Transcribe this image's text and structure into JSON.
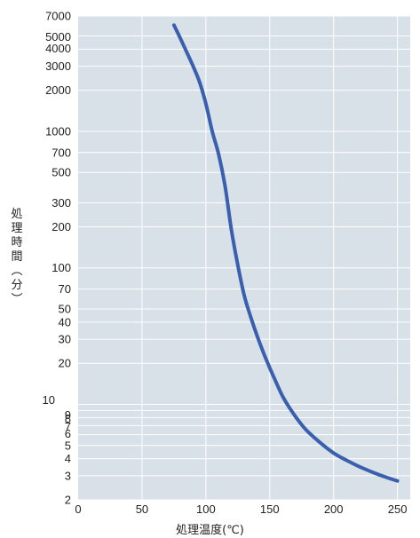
{
  "chart_data": {
    "type": "line",
    "xlabel": "処理温度(℃)",
    "ylabel": "処理時間(分)",
    "xlim": [
      0,
      260
    ],
    "ylim": [
      2,
      7000
    ],
    "yscale": "log",
    "grid": true,
    "x_ticks": [
      0,
      50,
      100,
      150,
      200,
      250
    ],
    "y_ticks": [
      2,
      3,
      4,
      5,
      6,
      7,
      8,
      9,
      10,
      20,
      30,
      40,
      50,
      70,
      100,
      200,
      300,
      500,
      700,
      1000,
      2000,
      3000,
      4000,
      5000,
      7000
    ],
    "colors": {
      "plot_bg": "#d8e1e8",
      "grid": "#ffffff",
      "line": "#3a5fae"
    },
    "series": [
      {
        "x": [
          75,
          80,
          85,
          90,
          95,
          100,
          105,
          110,
          115,
          120,
          125,
          130,
          135,
          140,
          145,
          150,
          155,
          160,
          165,
          170,
          175,
          180,
          190,
          200,
          210,
          220,
          230,
          240,
          250
        ],
        "y": [
          6000,
          4800,
          3800,
          3000,
          2300,
          1600,
          1000,
          680,
          400,
          190,
          105,
          63,
          44,
          32,
          24,
          18.5,
          14.5,
          11.5,
          9.6,
          8.2,
          7.1,
          6.3,
          5.2,
          4.4,
          3.9,
          3.5,
          3.2,
          2.95,
          2.75
        ]
      }
    ]
  }
}
